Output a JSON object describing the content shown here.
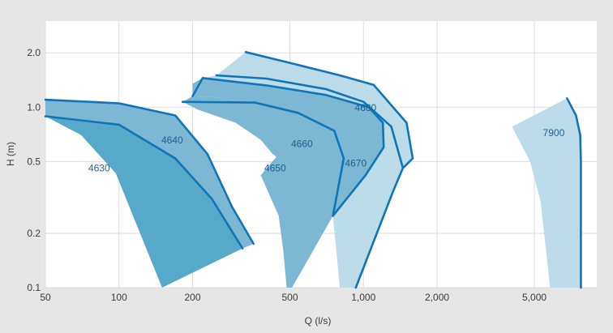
{
  "chart_data": {
    "type": "area",
    "xscale": "log",
    "yscale": "log",
    "xlabel": "Q (l/s)",
    "ylabel": "H (m)",
    "xlim": [
      50,
      9000
    ],
    "ylim": [
      0.1,
      3.0
    ],
    "x_ticks": [
      {
        "value": 50,
        "label": "50"
      },
      {
        "value": 100,
        "label": "100"
      },
      {
        "value": 200,
        "label": "200"
      },
      {
        "value": 500,
        "label": "500"
      },
      {
        "value": 1000,
        "label": "1,000"
      },
      {
        "value": 2000,
        "label": "2,000"
      },
      {
        "value": 5000,
        "label": "5,000"
      }
    ],
    "y_ticks": [
      {
        "value": 0.1,
        "label": "0.1"
      },
      {
        "value": 0.2,
        "label": "0.2"
      },
      {
        "value": 0.5,
        "label": "0.5"
      },
      {
        "value": 1.0,
        "label": "1.0"
      },
      {
        "value": 2.0,
        "label": "2.0"
      }
    ],
    "grid": true,
    "colors": {
      "background": "#e6e6e6",
      "plot_background": "#ffffff",
      "grid": "#dddddd",
      "curve_line": "#0f75b8",
      "label_text": "#1f5f8e",
      "fill_dark": "#57a9c9",
      "fill_medium": "#7cb7d4",
      "fill_light": "#bcdcea"
    },
    "series": [
      {
        "name": "4630",
        "fill": "#57a9c9",
        "label_at": [
          83,
          0.44
        ],
        "outline": [
          [
            50,
            0.89
          ],
          [
            70,
            0.7
          ],
          [
            97,
            0.43
          ],
          [
            150,
            0.1
          ],
          [
            320,
            0.165
          ],
          [
            240,
            0.31
          ],
          [
            170,
            0.52
          ],
          [
            100,
            0.8
          ]
        ],
        "curves": [
          [
            [
              50,
              0.89
            ],
            [
              100,
              0.8
            ],
            [
              170,
              0.52
            ],
            [
              240,
              0.31
            ],
            [
              320,
              0.165
            ]
          ]
        ]
      },
      {
        "name": "4640",
        "fill": "#7cb7d4",
        "label_at": [
          165,
          0.63
        ],
        "outline": [
          [
            50,
            1.1
          ],
          [
            100,
            1.05
          ],
          [
            170,
            0.9
          ],
          [
            230,
            0.55
          ],
          [
            290,
            0.28
          ],
          [
            355,
            0.175
          ],
          [
            320,
            0.165
          ],
          [
            240,
            0.31
          ],
          [
            170,
            0.52
          ],
          [
            100,
            0.8
          ],
          [
            50,
            0.89
          ]
        ],
        "curves": [
          [
            [
              50,
              1.1
            ],
            [
              100,
              1.05
            ],
            [
              170,
              0.9
            ],
            [
              230,
              0.55
            ],
            [
              290,
              0.28
            ],
            [
              355,
              0.175
            ]
          ]
        ]
      },
      {
        "name": "4650",
        "fill": "#7cb7d4",
        "label_at": [
          435,
          0.44
        ],
        "outline": [
          [
            182,
            1.07
          ],
          [
            210,
            0.97
          ],
          [
            300,
            0.82
          ],
          [
            380,
            0.66
          ],
          [
            420,
            0.56
          ],
          [
            440,
            0.53
          ],
          [
            380,
            0.42
          ],
          [
            450,
            0.25
          ],
          [
            470,
            0.16
          ],
          [
            485,
            0.1
          ],
          [
            510,
            0.1
          ],
          [
            750,
            0.25
          ],
          [
            830,
            0.52
          ],
          [
            760,
            0.74
          ],
          [
            540,
            0.93
          ],
          [
            360,
            1.06
          ],
          [
            260,
            1.13
          ],
          [
            200,
            1.15
          ]
        ],
        "curves": [
          [
            [
              182,
              1.07
            ],
            [
              360,
              1.06
            ],
            [
              540,
              0.93
            ],
            [
              760,
              0.74
            ],
            [
              830,
              0.52
            ],
            [
              750,
              0.25
            ]
          ]
        ]
      },
      {
        "name": "4660",
        "fill": "#7cb7d4",
        "label_at": [
          560,
          0.6
        ],
        "outline": [
          [
            200,
            1.15
          ],
          [
            260,
            1.13
          ],
          [
            360,
            1.06
          ],
          [
            540,
            0.93
          ],
          [
            760,
            0.74
          ],
          [
            830,
            0.52
          ],
          [
            750,
            0.25
          ],
          [
            1020,
            0.42
          ],
          [
            1210,
            0.6
          ],
          [
            1200,
            0.82
          ],
          [
            1050,
            1.0
          ],
          [
            700,
            1.17
          ],
          [
            400,
            1.32
          ],
          [
            220,
            1.45
          ],
          [
            200,
            1.35
          ]
        ],
        "curves": [
          [
            [
              200,
              1.15
            ],
            [
              220,
              1.45
            ],
            [
              400,
              1.32
            ],
            [
              700,
              1.17
            ],
            [
              1050,
              1.0
            ],
            [
              1200,
              0.82
            ],
            [
              1210,
              0.6
            ],
            [
              1020,
              0.42
            ],
            [
              750,
              0.25
            ]
          ]
        ]
      },
      {
        "name": "4670",
        "fill": "#bcdcea",
        "label_at": [
          930,
          0.47
        ],
        "outline": [
          [
            220,
            1.45
          ],
          [
            400,
            1.32
          ],
          [
            700,
            1.17
          ],
          [
            1050,
            1.0
          ],
          [
            1200,
            0.82
          ],
          [
            1210,
            0.6
          ],
          [
            1020,
            0.42
          ],
          [
            750,
            0.25
          ],
          [
            800,
            0.1
          ],
          [
            930,
            0.1
          ],
          [
            1320,
            0.34
          ],
          [
            1450,
            0.46
          ],
          [
            1300,
            0.78
          ],
          [
            1000,
            1.07
          ],
          [
            700,
            1.26
          ],
          [
            400,
            1.44
          ],
          [
            250,
            1.5
          ]
        ],
        "curves": [
          [
            [
              250,
              1.5
            ],
            [
              400,
              1.44
            ],
            [
              700,
              1.26
            ],
            [
              1000,
              1.07
            ],
            [
              1300,
              0.78
            ],
            [
              1450,
              0.46
            ],
            [
              1320,
              0.34
            ],
            [
              930,
              0.1
            ]
          ]
        ]
      },
      {
        "name": "4680",
        "fill": "#bcdcea",
        "label_at": [
          1020,
          0.95
        ],
        "outline": [
          [
            250,
            1.5
          ],
          [
            400,
            1.44
          ],
          [
            700,
            1.26
          ],
          [
            1000,
            1.07
          ],
          [
            1300,
            0.78
          ],
          [
            1450,
            0.46
          ],
          [
            1590,
            0.52
          ],
          [
            1500,
            0.82
          ],
          [
            1100,
            1.33
          ],
          [
            800,
            1.5
          ],
          [
            500,
            1.76
          ],
          [
            330,
            2.02
          ]
        ],
        "curves": [
          [
            [
              330,
              2.02
            ],
            [
              500,
              1.76
            ],
            [
              800,
              1.5
            ],
            [
              1100,
              1.33
            ],
            [
              1500,
              0.82
            ],
            [
              1590,
              0.52
            ],
            [
              1450,
              0.46
            ]
          ]
        ]
      },
      {
        "name": "7900",
        "fill": "#bcdcea",
        "label_at": [
          6000,
          0.69
        ],
        "outline": [
          [
            4050,
            0.78
          ],
          [
            4800,
            0.5
          ],
          [
            5300,
            0.3
          ],
          [
            5800,
            0.1
          ],
          [
            7750,
            0.1
          ],
          [
            7750,
            0.3
          ],
          [
            7750,
            0.5
          ],
          [
            7700,
            0.7
          ],
          [
            7400,
            0.9
          ],
          [
            6800,
            1.12
          ]
        ],
        "curves": [
          [
            [
              6800,
              1.12
            ],
            [
              7400,
              0.9
            ],
            [
              7700,
              0.7
            ],
            [
              7750,
              0.5
            ],
            [
              7750,
              0.3
            ],
            [
              7750,
              0.1
            ]
          ]
        ]
      }
    ]
  }
}
